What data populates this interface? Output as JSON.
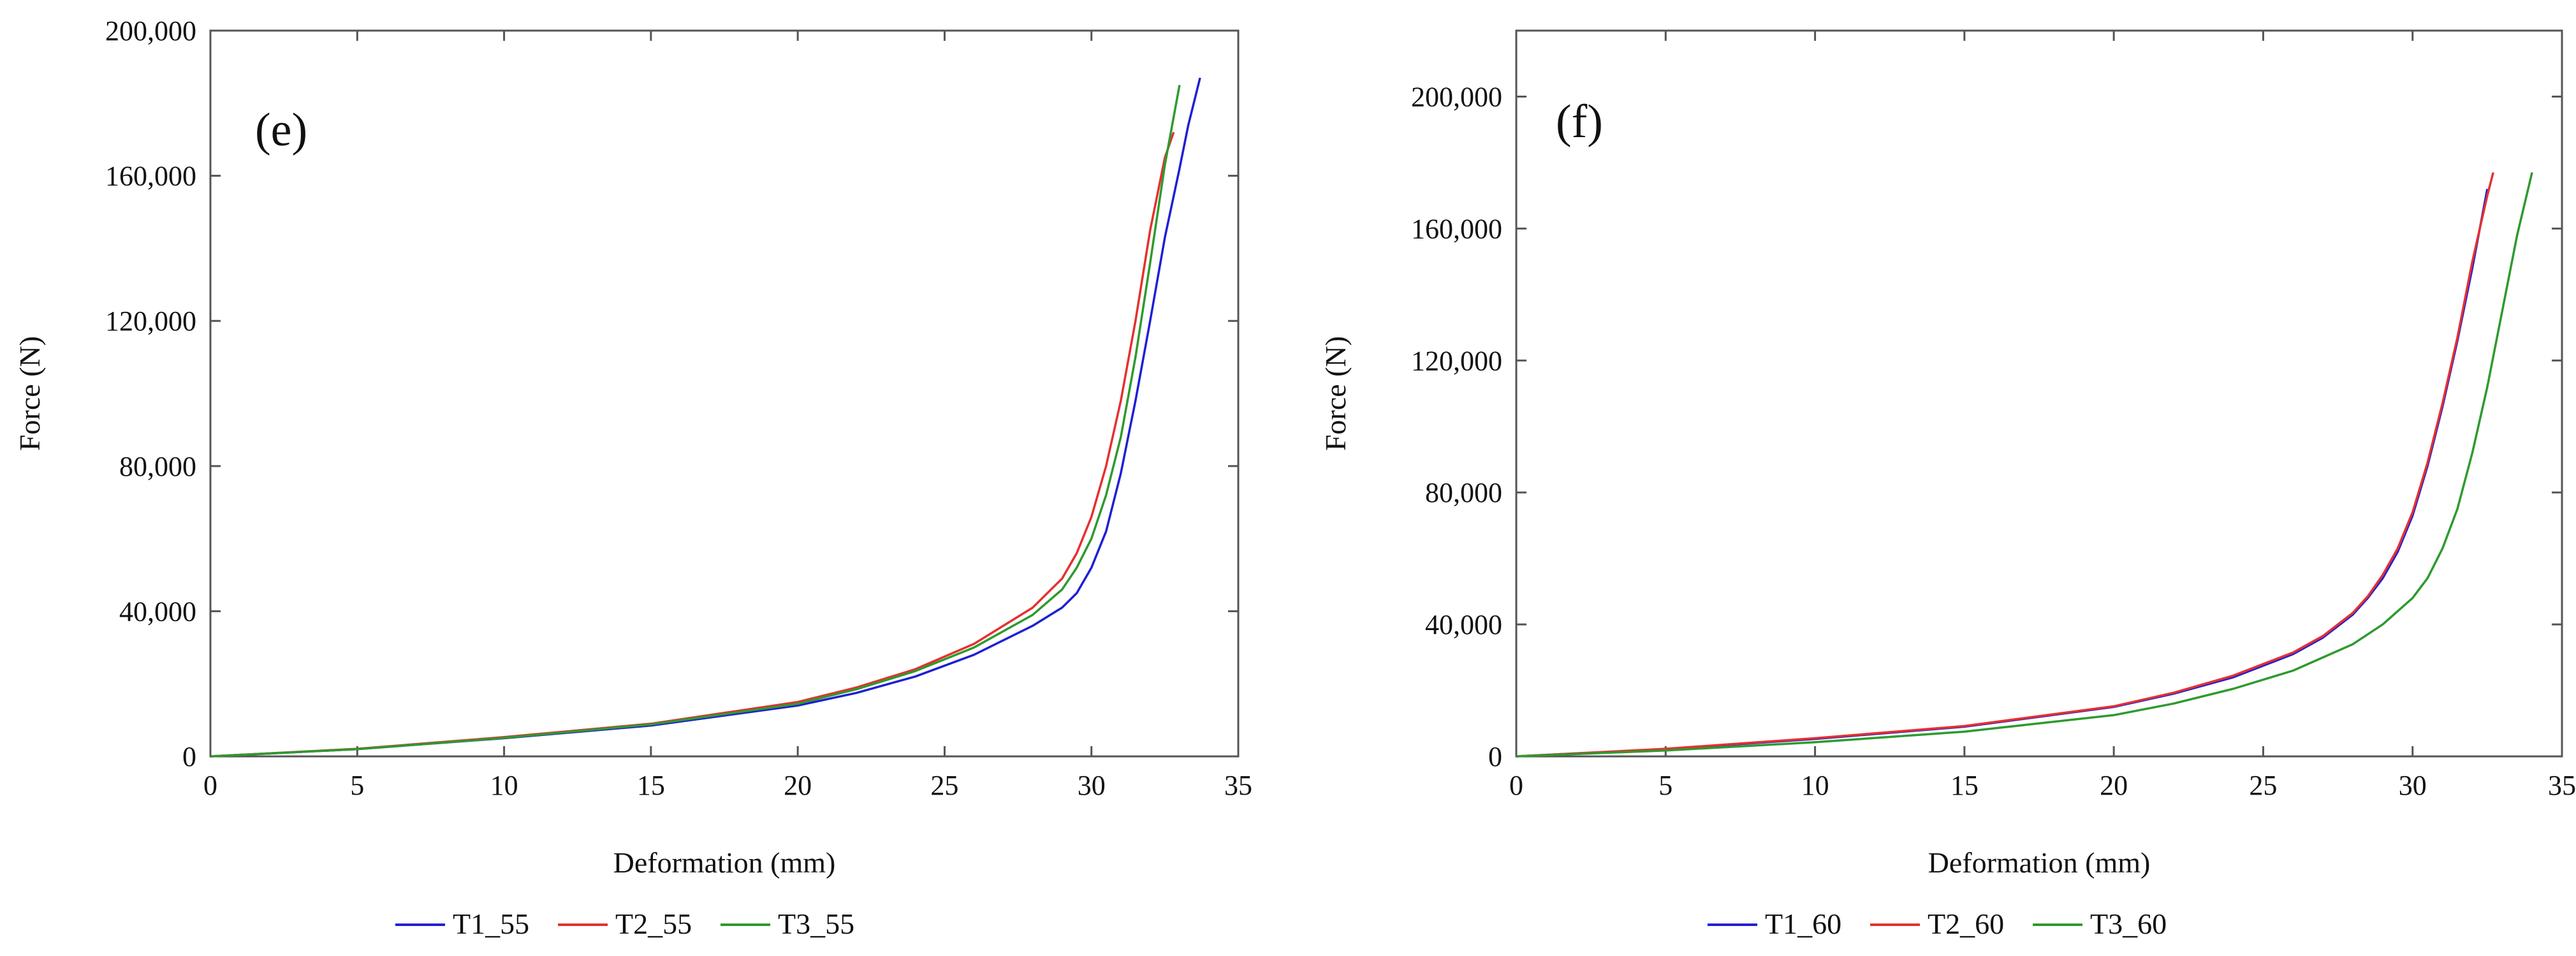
{
  "chart_data": [
    {
      "type": "line",
      "panel_label": "(e)",
      "xlabel": "Deformation (mm)",
      "ylabel": "Force (N)",
      "xlim": [
        0,
        35
      ],
      "ylim": [
        0,
        200000
      ],
      "xticks": [
        "0",
        "5",
        "10",
        "15",
        "20",
        "25",
        "30",
        "35"
      ],
      "xtick_values": [
        0,
        5,
        10,
        15,
        20,
        25,
        30,
        35
      ],
      "yticks": [
        "0",
        "40,000",
        "80,000",
        "120,000",
        "160,000",
        "200,000"
      ],
      "ytick_values": [
        0,
        40000,
        80000,
        120000,
        160000,
        200000
      ],
      "grid": false,
      "legend_position": "bottom",
      "series": [
        {
          "name": "T1_55",
          "color": "#1f1fd6",
          "x": [
            0,
            5,
            10,
            15,
            20,
            22,
            24,
            26,
            28,
            29,
            29.5,
            30,
            30.5,
            31,
            31.5,
            32,
            32.5,
            33,
            33.3,
            33.7
          ],
          "y": [
            0,
            2000,
            5000,
            8500,
            14000,
            17500,
            22000,
            28000,
            36000,
            41000,
            45000,
            52000,
            62000,
            78000,
            98000,
            120000,
            143000,
            162000,
            174000,
            187000
          ]
        },
        {
          "name": "T2_55",
          "color": "#e53030",
          "x": [
            0,
            5,
            10,
            15,
            20,
            22,
            24,
            26,
            28,
            29,
            29.5,
            30,
            30.5,
            31,
            31.5,
            32,
            32.5,
            32.8
          ],
          "y": [
            0,
            2100,
            5300,
            9000,
            15000,
            19000,
            24000,
            31000,
            41000,
            49000,
            56000,
            66000,
            80000,
            98000,
            120000,
            145000,
            165000,
            172000
          ]
        },
        {
          "name": "T3_55",
          "color": "#2e9a2e",
          "x": [
            0,
            5,
            10,
            15,
            20,
            22,
            24,
            26,
            28,
            29,
            29.5,
            30,
            30.5,
            31,
            31.5,
            32,
            32.5,
            33
          ],
          "y": [
            0,
            2000,
            5100,
            8800,
            14500,
            18500,
            23500,
            30000,
            39000,
            46000,
            52000,
            60000,
            72000,
            88000,
            110000,
            136000,
            163000,
            185000
          ]
        }
      ]
    },
    {
      "type": "line",
      "panel_label": "(f)",
      "xlabel": "Deformation (mm)",
      "ylabel": "Force (N)",
      "xlim": [
        0,
        35
      ],
      "ylim": [
        0,
        220000
      ],
      "xticks": [
        "0",
        "5",
        "10",
        "15",
        "20",
        "25",
        "30",
        "35"
      ],
      "xtick_values": [
        0,
        5,
        10,
        15,
        20,
        25,
        30,
        35
      ],
      "yticks": [
        "0",
        "40,000",
        "80,000",
        "120,000",
        "160,000",
        "200,000"
      ],
      "ytick_values": [
        0,
        40000,
        80000,
        120000,
        160000,
        200000
      ],
      "grid": false,
      "legend_position": "bottom",
      "series": [
        {
          "name": "T1_60",
          "color": "#1f1fd6",
          "x": [
            0,
            5,
            10,
            15,
            20,
            22,
            24,
            26,
            27,
            28,
            28.5,
            29,
            29.5,
            30,
            30.5,
            31,
            31.5,
            32,
            32.5
          ],
          "y": [
            0,
            2200,
            5300,
            9000,
            15000,
            19000,
            24000,
            31000,
            36000,
            43000,
            48000,
            54000,
            62000,
            73000,
            88000,
            106000,
            126000,
            148000,
            172000
          ]
        },
        {
          "name": "T2_60",
          "color": "#e53030",
          "x": [
            0,
            5,
            10,
            15,
            20,
            22,
            24,
            26,
            27,
            28,
            28.5,
            29,
            29.5,
            30,
            30.5,
            31,
            31.5,
            32,
            32.5,
            32.7
          ],
          "y": [
            0,
            2300,
            5500,
            9200,
            15200,
            19300,
            24500,
            31500,
            36500,
            43500,
            48500,
            55000,
            63000,
            74000,
            89000,
            107000,
            127000,
            150000,
            170000,
            177000
          ]
        },
        {
          "name": "T3_60",
          "color": "#2e9a2e",
          "x": [
            0,
            5,
            10,
            15,
            20,
            22,
            24,
            26,
            28,
            29,
            30,
            30.5,
            31,
            31.5,
            32,
            32.5,
            33,
            33.5,
            34
          ],
          "y": [
            0,
            1800,
            4300,
            7500,
            12500,
            16000,
            20500,
            26000,
            34000,
            40000,
            48000,
            54000,
            63000,
            75000,
            92000,
            112000,
            135000,
            158000,
            177000
          ]
        }
      ]
    }
  ]
}
